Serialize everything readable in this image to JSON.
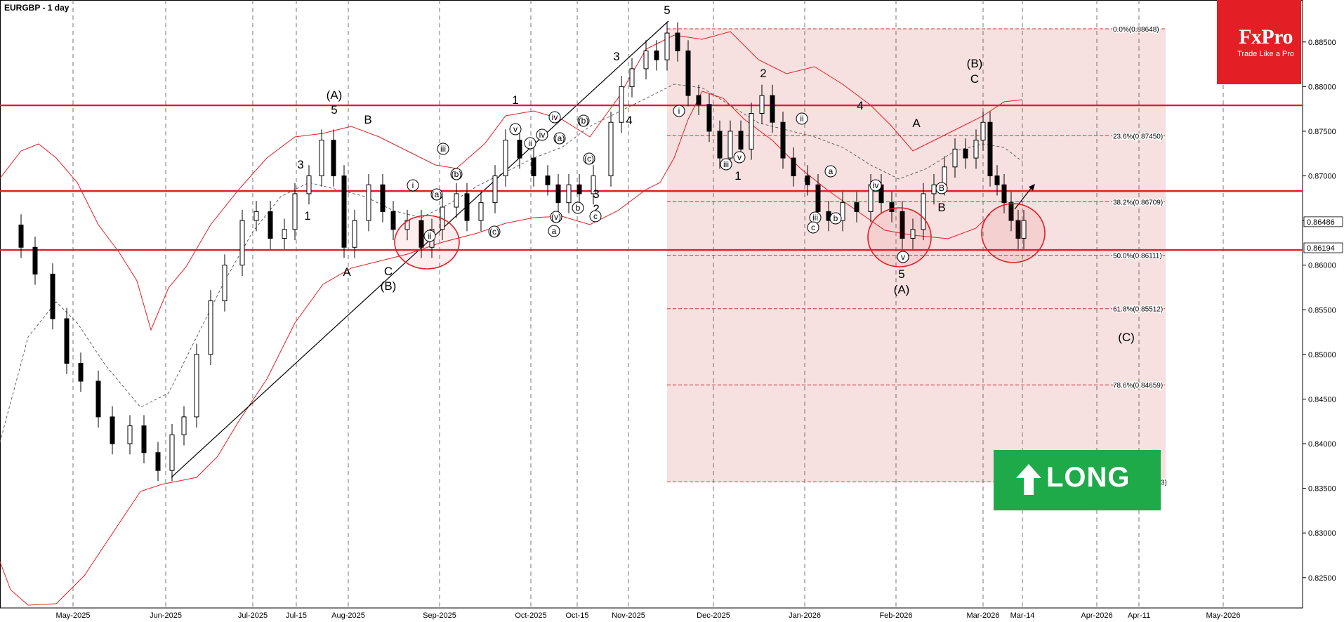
{
  "title": "EURGBP - 1 day",
  "logo": {
    "name": "FxPro",
    "tagline": "Trade Like a Pro"
  },
  "badge": {
    "label": "LONG"
  },
  "price_boxes": {
    "current": "0.86486",
    "marked": "0.86194"
  },
  "colors": {
    "accent": "#e31e24",
    "long": "#1faa4a",
    "zone": "#f3d6d6"
  },
  "chart_data": {
    "type": "candlestick",
    "title": "EURGBP - 1 day",
    "ylim": [
      0.8216,
      0.8897
    ],
    "y_ticks": [
      "0.88500",
      "0.88000",
      "0.87500",
      "0.87000",
      "0.86500",
      "0.86000",
      "0.85500",
      "0.85000",
      "0.84500",
      "0.84000",
      "0.83500",
      "0.83000",
      "0.82500"
    ],
    "x_ticks": [
      "May-2025",
      "Jun-2025",
      "Jul-2025",
      "Jul-15",
      "Aug-2025",
      "Sep-2025",
      "Oct-2025",
      "Oct-15",
      "Nov-2025",
      "Dec-2025",
      "Jan-2026",
      "Feb-2026",
      "Mar-2026",
      "Mar-14",
      "Apr-2026",
      "Apr-11",
      "May-2026"
    ],
    "horizontal_levels": [
      0.8779,
      0.8683,
      0.8617
    ],
    "fib_levels": [
      {
        "label": "0.0%(0.88648)",
        "value": 0.88648
      },
      {
        "label": "23.6%(0.87450)",
        "value": 0.8745
      },
      {
        "label": "38.2%(0.86709)",
        "value": 0.86709
      },
      {
        "label": "50.0%(0.86111)",
        "value": 0.86111
      },
      {
        "label": "61.8%(0.85512)",
        "value": 0.85512
      },
      {
        "label": "78.6%(0.84659)",
        "value": 0.84659
      },
      {
        "label": "100.0%(0.83573)",
        "value": 0.83573
      }
    ],
    "wave_labels": [
      "(A)",
      "5",
      "3",
      "1",
      "B",
      "A",
      "C",
      "(B)",
      "1",
      "3",
      "4",
      "2",
      "(3)",
      "5",
      "2",
      "1",
      "3",
      "4",
      "(B)",
      "C",
      "A",
      "B",
      "5",
      "(A)",
      "(C)"
    ],
    "sub_wave_labels": [
      "i",
      "ii",
      "iii",
      "(a)",
      "(b)",
      "(c)",
      "iv",
      "v",
      "ii",
      "iv",
      "(a)",
      "(b)",
      "(c)",
      "(v)",
      "a",
      "b",
      "c",
      "iii",
      "v",
      "i",
      "ii",
      "iii",
      "iv",
      "v",
      "a",
      "b",
      "c",
      "B"
    ]
  }
}
